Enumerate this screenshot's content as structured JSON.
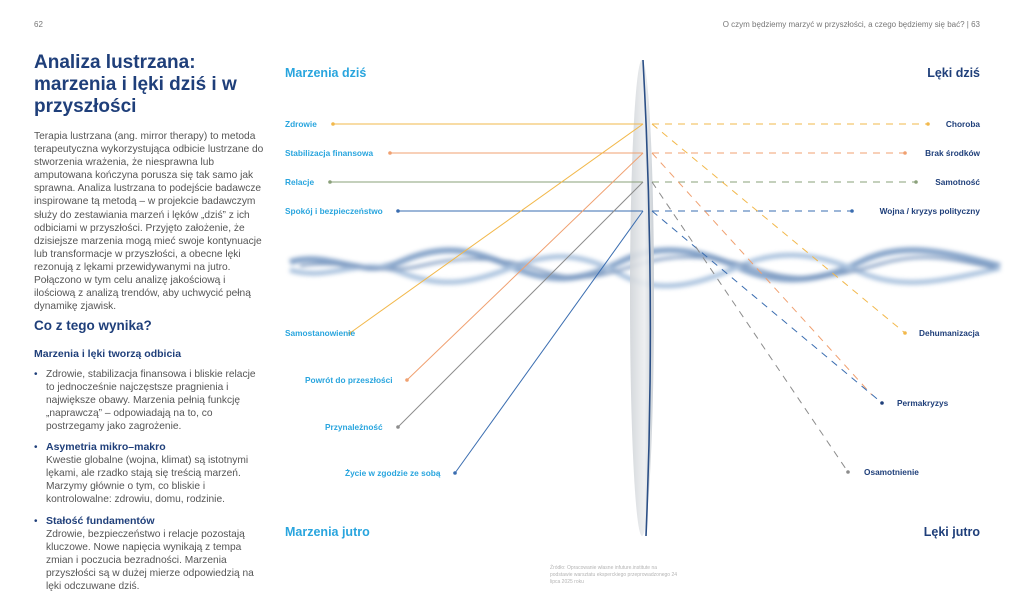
{
  "header": {
    "page_left": "62",
    "page_right": "O czym będziemy marzyć w przyszłości, a czego będziemy się bać? | 63"
  },
  "left": {
    "title": "Analiza lustrzana: marzenia i lęki dziś i w przyszłości",
    "intro": "Terapia lustrzana (ang. mirror therapy) to metoda terapeutyczna wykorzystująca odbicie lustrzane do stworzenia wrażenia, że niesprawna lub amputowana kończyna porusza się tak samo jak sprawna. Analiza lustrzana to podejście badawcze inspirowane tą metodą – w projekcie badawczym służy do zestawiania marzeń i lęków „dziś” z ich odbiciami w przyszłości. Przyjęto założenie, że dzisiejsze marzenia mogą mieć swoje kontynuacje lub transformacje w przyszłości, a obecne lęki rezonują z lękami przewidywanymi na jutro. Połączono w tym celu analizę jakościową i ilościową z analizą trendów, aby uchwycić pełną dynamikę zjawisk.",
    "heading": "Co z tego wynika?",
    "subheading": "Marzenia i lęki tworzą odbicia",
    "bullets": [
      {
        "title": "",
        "text": "Zdrowie, stabilizacja finansowa i bliskie relacje to jednocześnie najczęstsze pragnienia i największe obawy. Marzenia pełnią funkcję „naprawczą” – odpowiadają na to, co postrzegamy jako zagrożenie."
      },
      {
        "title": "Asymetria mikro–makro",
        "text": "Kwestie globalne (wojna, klimat) są istotnymi lękami, ale rzadko stają się treścią marzeń. Marzymy głównie o tym, co bliskie i kontrolowalne: zdrowiu, domu, rodzinie."
      },
      {
        "title": "Stałość fundamentów",
        "text": "Zdrowie, bezpieczeństwo i relacje pozostają kluczowe. Nowe napięcia wynikają z tempa zmian i poczucia bezradności. Marzenia przyszłości są w dużej mierze odpowiedzią na lęki odczuwane dziś."
      }
    ],
    "bullet_symbol": "•"
  },
  "diagram": {
    "corners": {
      "dreams_today": "Marzenia dziś",
      "fears_today": "Lęki dziś",
      "dreams_future": "Marzenia jutro",
      "fears_future": "Lęki jutro"
    },
    "dreams_today": [
      "Zdrowie",
      "Stabilizacja finansowa",
      "Relacje",
      "Spokój i bezpieczeństwo"
    ],
    "fears_today": [
      "Choroba",
      "Brak środków",
      "Samotność",
      "Wojna / kryzys polityczny"
    ],
    "dreams_future": [
      "Samostanowienie",
      "Powrót do przeszłości",
      "Przynależność",
      "Życie w zgodzie ze sobą"
    ],
    "fears_future": [
      "Dehumanizacja",
      "Permakryzys",
      "Osamotnienie"
    ],
    "colors": {
      "yellow": "#f2b84b",
      "orange": "#f0a070",
      "green": "#8aa07a",
      "blue": "#3a6db0",
      "left_label": "#29a5de",
      "right_label": "#1f3f7a"
    },
    "source": "Źródło: Opracowanie własne infuture.institute na podstawie warsztatu eksperckiego przeprowadzonego 24 lipca 2025 roku"
  }
}
